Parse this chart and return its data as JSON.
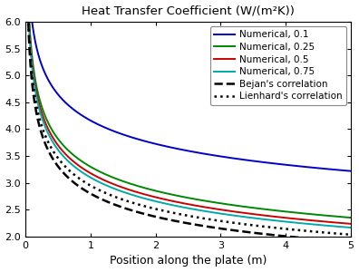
{
  "title": "Heat Transfer Coefficient (W/(m²K))",
  "xlabel": "Position along the plate (m)",
  "xlim": [
    0,
    5
  ],
  "ylim": [
    2,
    6
  ],
  "yticks": [
    2,
    2.5,
    3,
    3.5,
    4,
    4.5,
    5,
    5.5,
    6
  ],
  "xticks": [
    0,
    1,
    2,
    3,
    4,
    5
  ],
  "num_curves": [
    {
      "A": 4.16,
      "n": -0.159,
      "color": "#0000cc",
      "label": "Numerical, 0.1",
      "lw": 1.4
    },
    {
      "A": 3.3,
      "n": -0.21,
      "color": "#008800",
      "label": "Numerical, 0.25",
      "lw": 1.4
    },
    {
      "A": 3.18,
      "n": -0.218,
      "color": "#cc0000",
      "label": "Numerical, 0.5",
      "lw": 1.4
    },
    {
      "A": 3.1,
      "n": -0.222,
      "color": "#00aaaa",
      "label": "Numerical, 0.75",
      "lw": 1.4
    }
  ],
  "corr_curves": [
    {
      "A": 2.95,
      "n": -0.23,
      "color": "#000000",
      "label": "Lienhard's correlation",
      "lw": 1.8,
      "ls": ":"
    },
    {
      "A": 2.8,
      "n": -0.24,
      "color": "#000000",
      "label": "Bejan's correlation",
      "lw": 1.8,
      "ls": "--"
    }
  ],
  "background_color": "#ffffff",
  "legend_fontsize": 7.5,
  "title_fontsize": 9.5,
  "axis_fontsize": 9
}
